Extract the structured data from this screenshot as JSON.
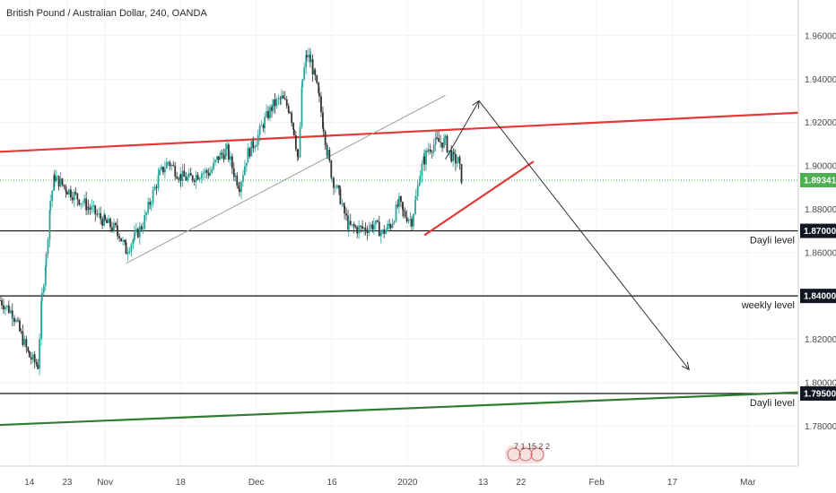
{
  "chart_data": {
    "type": "candlestick",
    "title": "British Pound / Australian Dollar, 240, OANDA",
    "y_ticks": [
      "1.96000",
      "1.94000",
      "1.92000",
      "1.90000",
      "1.88000",
      "1.86000",
      "1.84000",
      "1.82000",
      "1.80000",
      "1.78000"
    ],
    "y_tick_values": [
      1.96,
      1.94,
      1.92,
      1.9,
      1.88,
      1.86,
      1.84,
      1.82,
      1.8,
      1.78
    ],
    "ylim": [
      1.7615,
      1.9765
    ],
    "x_ticks": [
      "14",
      "23",
      "Nov",
      "18",
      "Dec",
      "16",
      "2020",
      "13",
      "22",
      "Feb",
      "17",
      "Mar"
    ],
    "x_tick_positions": [
      0,
      9,
      18,
      36,
      54,
      72,
      90,
      108,
      117,
      135,
      153,
      171
    ],
    "xlim": [
      -7,
      183
    ],
    "current_price": {
      "label": "1.89341",
      "value": 1.89341,
      "color": "#4caf50"
    },
    "levels": [
      {
        "price_label": "1.87000",
        "value": 1.87,
        "annotation": "Dayli level"
      },
      {
        "price_label": "1.84000",
        "value": 1.84,
        "annotation": "weekly level"
      },
      {
        "price_label": "1.79500",
        "value": 1.795,
        "annotation": "Dayli level"
      }
    ],
    "trendlines": [
      {
        "color": "#e53935",
        "x": [
          -7,
          183
        ],
        "y": [
          1.9065,
          1.9245
        ]
      },
      {
        "color": "#2e7d32",
        "x": [
          -7,
          183
        ],
        "y": [
          1.7805,
          1.7955
        ]
      },
      {
        "color": "#e53935",
        "x": [
          94,
          120
        ],
        "y": [
          1.868,
          1.902
        ]
      },
      {
        "color": "#9e9e9e",
        "x": [
          23,
          99
        ],
        "y": [
          1.855,
          1.9325
        ]
      }
    ],
    "arrows": [
      {
        "color": "#333333",
        "x": [
          99,
          107
        ],
        "y": [
          1.903,
          1.93
        ]
      },
      {
        "color": "#333333",
        "x": [
          107,
          157
        ],
        "y": [
          1.93,
          1.806
        ]
      }
    ],
    "candle_colors": {
      "up": "#26a69a",
      "down": "#333333"
    },
    "candles_anchor_closes": [
      [
        -7,
        1.838
      ],
      [
        -4,
        1.832
      ],
      [
        -2,
        1.822
      ],
      [
        0,
        1.812
      ],
      [
        2,
        1.808
      ],
      [
        3,
        1.84
      ],
      [
        4,
        1.858
      ],
      [
        5,
        1.884
      ],
      [
        6,
        1.895
      ],
      [
        7,
        1.893
      ],
      [
        9,
        1.889
      ],
      [
        11,
        1.886
      ],
      [
        14,
        1.881
      ],
      [
        18,
        1.874
      ],
      [
        21,
        1.87
      ],
      [
        23,
        1.861
      ],
      [
        25,
        1.867
      ],
      [
        27,
        1.873
      ],
      [
        29,
        1.885
      ],
      [
        31,
        1.896
      ],
      [
        33,
        1.902
      ],
      [
        36,
        1.895
      ],
      [
        38,
        1.894
      ],
      [
        41,
        1.897
      ],
      [
        43,
        1.897
      ],
      [
        45,
        1.904
      ],
      [
        47,
        1.907
      ],
      [
        49,
        1.895
      ],
      [
        50,
        1.891
      ],
      [
        52,
        1.906
      ],
      [
        54,
        1.912
      ],
      [
        56,
        1.921
      ],
      [
        58,
        1.928
      ],
      [
        60,
        1.931
      ],
      [
        62,
        1.926
      ],
      [
        63,
        1.916
      ],
      [
        64,
        1.902
      ],
      [
        65,
        1.94
      ],
      [
        66,
        1.951
      ],
      [
        67,
        1.948
      ],
      [
        68,
        1.94
      ],
      [
        69,
        1.93
      ],
      [
        70,
        1.918
      ],
      [
        71,
        1.905
      ],
      [
        72,
        1.895
      ],
      [
        74,
        1.885
      ],
      [
        75,
        1.878
      ],
      [
        76,
        1.872
      ],
      [
        78,
        1.871
      ],
      [
        80,
        1.871
      ],
      [
        82,
        1.873
      ],
      [
        84,
        1.869
      ],
      [
        86,
        1.873
      ],
      [
        88,
        1.883
      ],
      [
        89,
        1.878
      ],
      [
        91,
        1.875
      ],
      [
        92,
        1.885
      ],
      [
        93,
        1.897
      ],
      [
        94,
        1.903
      ],
      [
        95,
        1.908
      ],
      [
        97,
        1.911
      ],
      [
        99,
        1.911
      ],
      [
        100,
        1.906
      ],
      [
        101,
        1.903
      ],
      [
        102,
        1.902
      ],
      [
        103,
        1.893
      ]
    ]
  },
  "watermark": {
    "text": "7 1 15 2 2"
  }
}
